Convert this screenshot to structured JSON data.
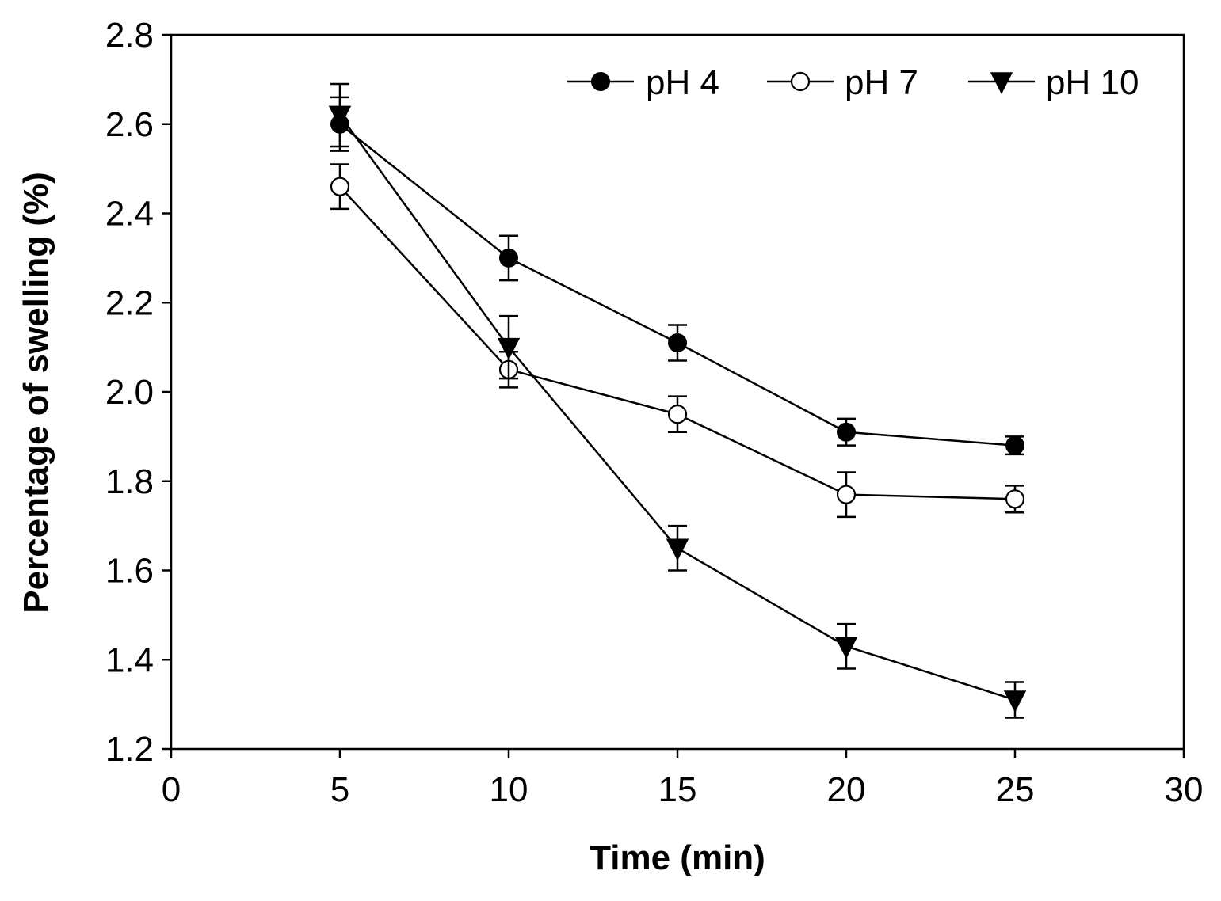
{
  "chart_data": {
    "type": "line",
    "title": "",
    "xlabel": "Time (min)",
    "ylabel": "Percentage of swelling (%)",
    "xlim": [
      0,
      30
    ],
    "ylim": [
      1.2,
      2.8
    ],
    "xticks": [
      0,
      5,
      10,
      15,
      20,
      25,
      30
    ],
    "yticks": [
      1.2,
      1.4,
      1.6,
      1.8,
      2.0,
      2.2,
      2.4,
      2.6,
      2.8
    ],
    "xtick_labels": [
      "0",
      "5",
      "10",
      "15",
      "20",
      "25",
      "30"
    ],
    "ytick_labels": [
      "1.2",
      "1.4",
      "1.6",
      "1.8",
      "2.0",
      "2.2",
      "2.4",
      "2.6",
      "2.8"
    ],
    "grid": false,
    "legend_position": "top-right",
    "x": [
      5,
      10,
      15,
      20,
      25
    ],
    "series": [
      {
        "name": "pH 4",
        "marker": "filled-circle",
        "values": [
          2.6,
          2.3,
          2.11,
          1.91,
          1.88
        ],
        "errors": [
          0.06,
          0.05,
          0.04,
          0.03,
          0.02
        ]
      },
      {
        "name": "pH 7",
        "marker": "open-circle",
        "values": [
          2.46,
          2.05,
          1.95,
          1.77,
          1.76
        ],
        "errors": [
          0.05,
          0.04,
          0.04,
          0.05,
          0.03
        ]
      },
      {
        "name": "pH 10",
        "marker": "filled-triangle-down",
        "values": [
          2.62,
          2.1,
          1.65,
          1.43,
          1.31
        ],
        "errors": [
          0.07,
          0.07,
          0.05,
          0.05,
          0.04
        ]
      }
    ],
    "colors": {
      "line": "#000000",
      "marker_fill": "#000000",
      "open_fill": "#ffffff"
    }
  }
}
